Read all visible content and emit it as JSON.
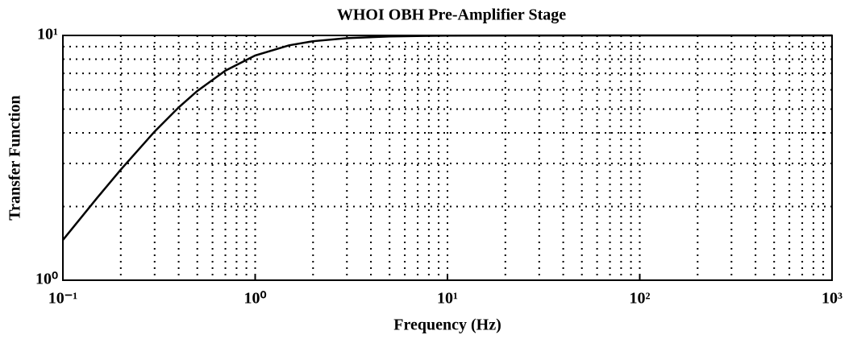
{
  "chart_data": {
    "type": "line",
    "title": "WHOI OBH Pre-Amplifier Stage",
    "x_label": "Frequency (Hz)",
    "y_label": "Transfer Function",
    "xscale": "log",
    "yscale": "log",
    "grid": true,
    "xlim": [
      0.1,
      1000
    ],
    "ylim": [
      1,
      10
    ],
    "xticks": [
      {
        "value": 0.1,
        "label": "10⁻¹"
      },
      {
        "value": 1,
        "label": "10⁰"
      },
      {
        "value": 10,
        "label": "10¹"
      },
      {
        "value": 100,
        "label": "10²"
      },
      {
        "value": 1000,
        "label": "10³"
      }
    ],
    "yticks": [
      {
        "value": 1,
        "label": "10⁰"
      },
      {
        "value": 10,
        "label": "10¹"
      }
    ],
    "x": [
      0.1,
      0.15,
      0.2,
      0.3,
      0.4,
      0.5,
      0.7,
      1,
      1.5,
      2,
      3,
      5,
      10,
      100,
      1000
    ],
    "series": [
      {
        "color": "#000000",
        "values": [
          1.46,
          2.16,
          2.83,
          4.05,
          5.08,
          5.93,
          7.18,
          8.28,
          9.11,
          9.47,
          9.75,
          9.91,
          9.98,
          10,
          10
        ]
      }
    ]
  }
}
